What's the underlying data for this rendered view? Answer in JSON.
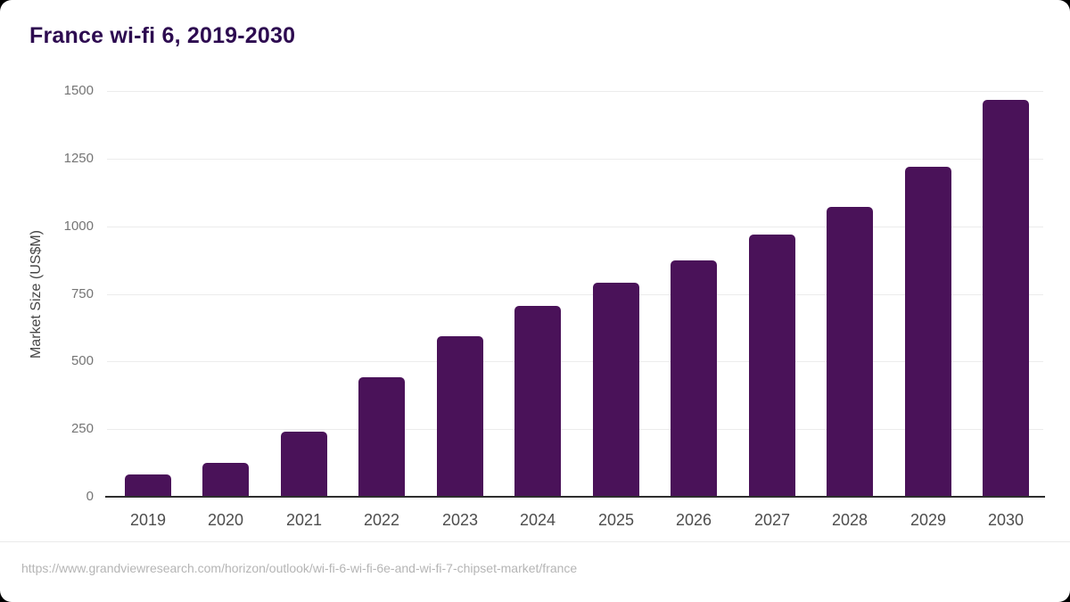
{
  "header": {
    "title": "France wi-fi 6, 2019-2030"
  },
  "chart_data": {
    "type": "bar",
    "title": "France wi-fi 6, 2019-2030",
    "categories": [
      "2019",
      "2020",
      "2021",
      "2022",
      "2023",
      "2024",
      "2025",
      "2026",
      "2027",
      "2028",
      "2029",
      "2030"
    ],
    "values": [
      84,
      126,
      240,
      443,
      595,
      705,
      790,
      873,
      968,
      1072,
      1220,
      1468
    ],
    "series_name": "Market Size",
    "xlabel": "",
    "ylabel": "Market Size (US$M)",
    "ylim": [
      0,
      1500
    ],
    "yticks": [
      0,
      250,
      500,
      750,
      1000,
      1250,
      1500
    ],
    "grid": "horizontal",
    "legend": "none",
    "bar_color": "#4a1259"
  },
  "colors": {
    "title_text": "#2d0b50",
    "bar_fill": "#4a1259",
    "axis_line": "#2e2e2e",
    "gridline": "#ececec",
    "x_tick_text": "#4d4d4d",
    "y_tick_text": "#757575",
    "source_text": "#b5b5b5",
    "card_background": "#ffffff"
  },
  "footer": {
    "source_url": "https://www.grandviewresearch.com/horizon/outlook/wi-fi-6-wi-fi-6e-and-wi-fi-7-chipset-market/france"
  }
}
